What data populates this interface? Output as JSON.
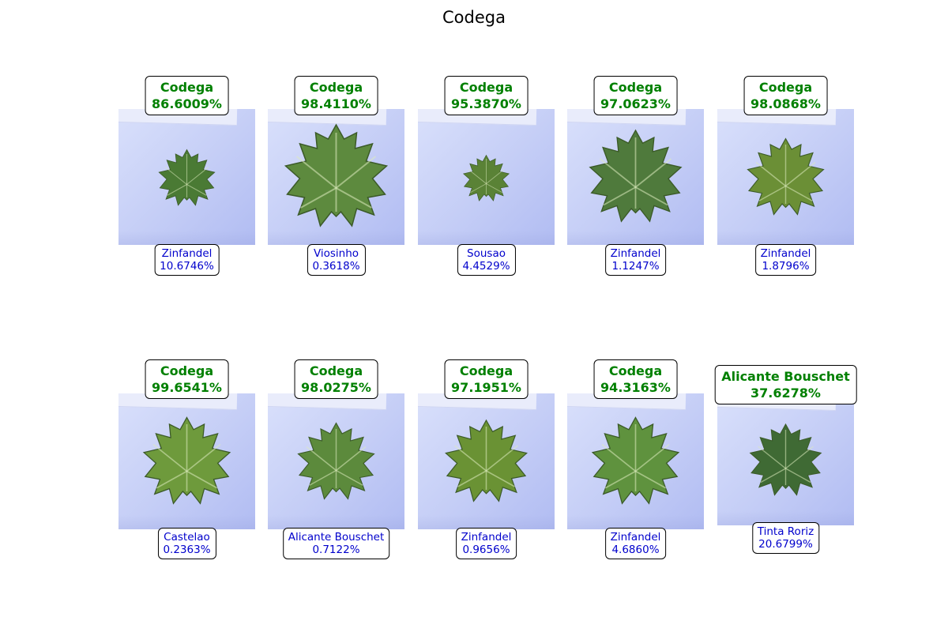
{
  "title": "Codega",
  "colors": {
    "top_text": "#008000",
    "bottom_text": "#0000cc",
    "background": "#ffffff"
  },
  "panels": [
    {
      "top": {
        "label": "Codega",
        "pct": "86.6009%"
      },
      "bottom": {
        "label": "Zinfandel",
        "pct": "10.6746%"
      },
      "leaf": {
        "color": "#4a7a34",
        "scale": 0.55
      }
    },
    {
      "top": {
        "label": "Codega",
        "pct": "98.4110%"
      },
      "bottom": {
        "label": "Viosinho",
        "pct": "0.3618%"
      },
      "leaf": {
        "color": "#5d8a3e",
        "scale": 1.0
      }
    },
    {
      "top": {
        "label": "Codega",
        "pct": "95.3870%"
      },
      "bottom": {
        "label": "Sousao",
        "pct": "4.4529%"
      },
      "leaf": {
        "color": "#5a8236",
        "scale": 0.45
      }
    },
    {
      "top": {
        "label": "Codega",
        "pct": "97.0623%"
      },
      "bottom": {
        "label": "Zinfandel",
        "pct": "1.1247%"
      },
      "leaf": {
        "color": "#4f7a3c",
        "scale": 0.9
      }
    },
    {
      "top": {
        "label": "Codega",
        "pct": "98.0868%"
      },
      "bottom": {
        "label": "Zinfandel",
        "pct": "1.8796%"
      },
      "leaf": {
        "color": "#6b8f36",
        "scale": 0.75
      }
    },
    {
      "top": {
        "label": "Codega",
        "pct": "99.6541%"
      },
      "bottom": {
        "label": "Castelao",
        "pct": "0.2363%"
      },
      "leaf": {
        "color": "#6e9a3c",
        "scale": 0.85
      }
    },
    {
      "top": {
        "label": "Codega",
        "pct": "98.0275%"
      },
      "bottom": {
        "label": "Alicante Bouschet",
        "pct": "0.7122%"
      },
      "leaf": {
        "color": "#5c8a3c",
        "scale": 0.75
      }
    },
    {
      "top": {
        "label": "Codega",
        "pct": "97.1951%"
      },
      "bottom": {
        "label": "Zinfandel",
        "pct": "0.9656%"
      },
      "leaf": {
        "color": "#6a9234",
        "scale": 0.8
      }
    },
    {
      "top": {
        "label": "Codega",
        "pct": "94.3163%"
      },
      "bottom": {
        "label": "Zinfandel",
        "pct": "4.6860%"
      },
      "leaf": {
        "color": "#5f923e",
        "scale": 0.85
      }
    },
    {
      "top": {
        "label": "Alicante Bouschet",
        "pct": "37.6278%"
      },
      "bottom": {
        "label": "Tinta Roriz",
        "pct": "20.6799%"
      },
      "leaf": {
        "color": "#3f6a34",
        "scale": 0.7
      }
    }
  ]
}
